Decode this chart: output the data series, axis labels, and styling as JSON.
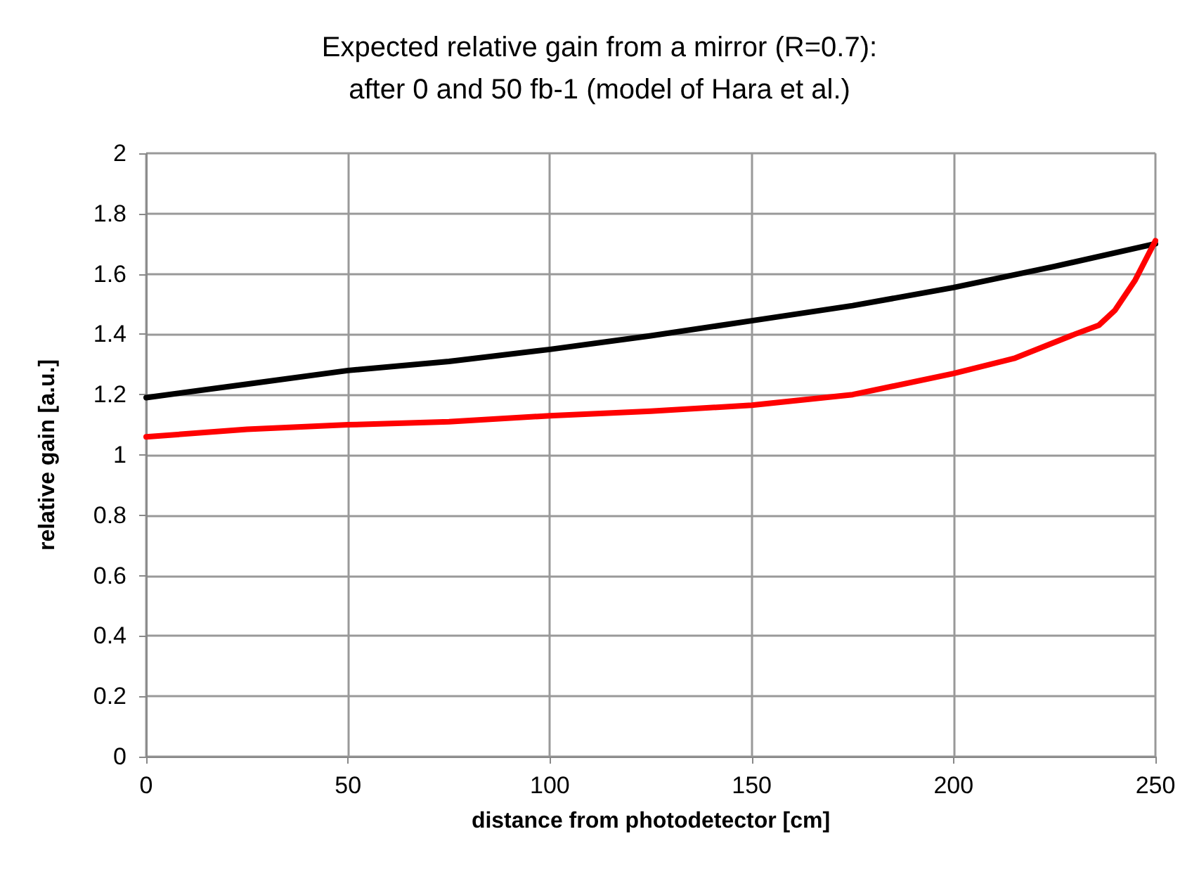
{
  "chart_data": {
    "type": "line",
    "title": "Expected relative gain from a mirror (R=0.7):\nafter 0 and 50 fb-1 (model of Hara et al.)",
    "xlabel": "distance from photodetector [cm]",
    "ylabel": "relative gain [a.u.]",
    "series": [
      {
        "color": "#000000",
        "x": [
          0,
          25,
          50,
          75,
          100,
          125,
          150,
          175,
          200,
          225,
          250
        ],
        "values": [
          1.19,
          1.235,
          1.28,
          1.31,
          1.35,
          1.395,
          1.445,
          1.495,
          1.555,
          1.625,
          1.7
        ]
      },
      {
        "color": "#ff0000",
        "x": [
          0,
          25,
          50,
          75,
          100,
          125,
          150,
          175,
          200,
          215,
          230,
          236,
          240,
          245,
          250
        ],
        "values": [
          1.06,
          1.085,
          1.1,
          1.11,
          1.13,
          1.145,
          1.165,
          1.2,
          1.27,
          1.32,
          1.4,
          1.43,
          1.48,
          1.58,
          1.71
        ]
      }
    ],
    "xlim": [
      0,
      250
    ],
    "xticks": [
      0,
      50,
      100,
      150,
      200,
      250
    ],
    "ylim": [
      0,
      2
    ],
    "yticks": [
      0,
      0.2,
      0.4,
      0.6,
      0.8,
      1,
      1.2,
      1.4,
      1.6,
      1.8,
      2
    ],
    "grid": true,
    "marker": "none",
    "line_style": "solid"
  }
}
